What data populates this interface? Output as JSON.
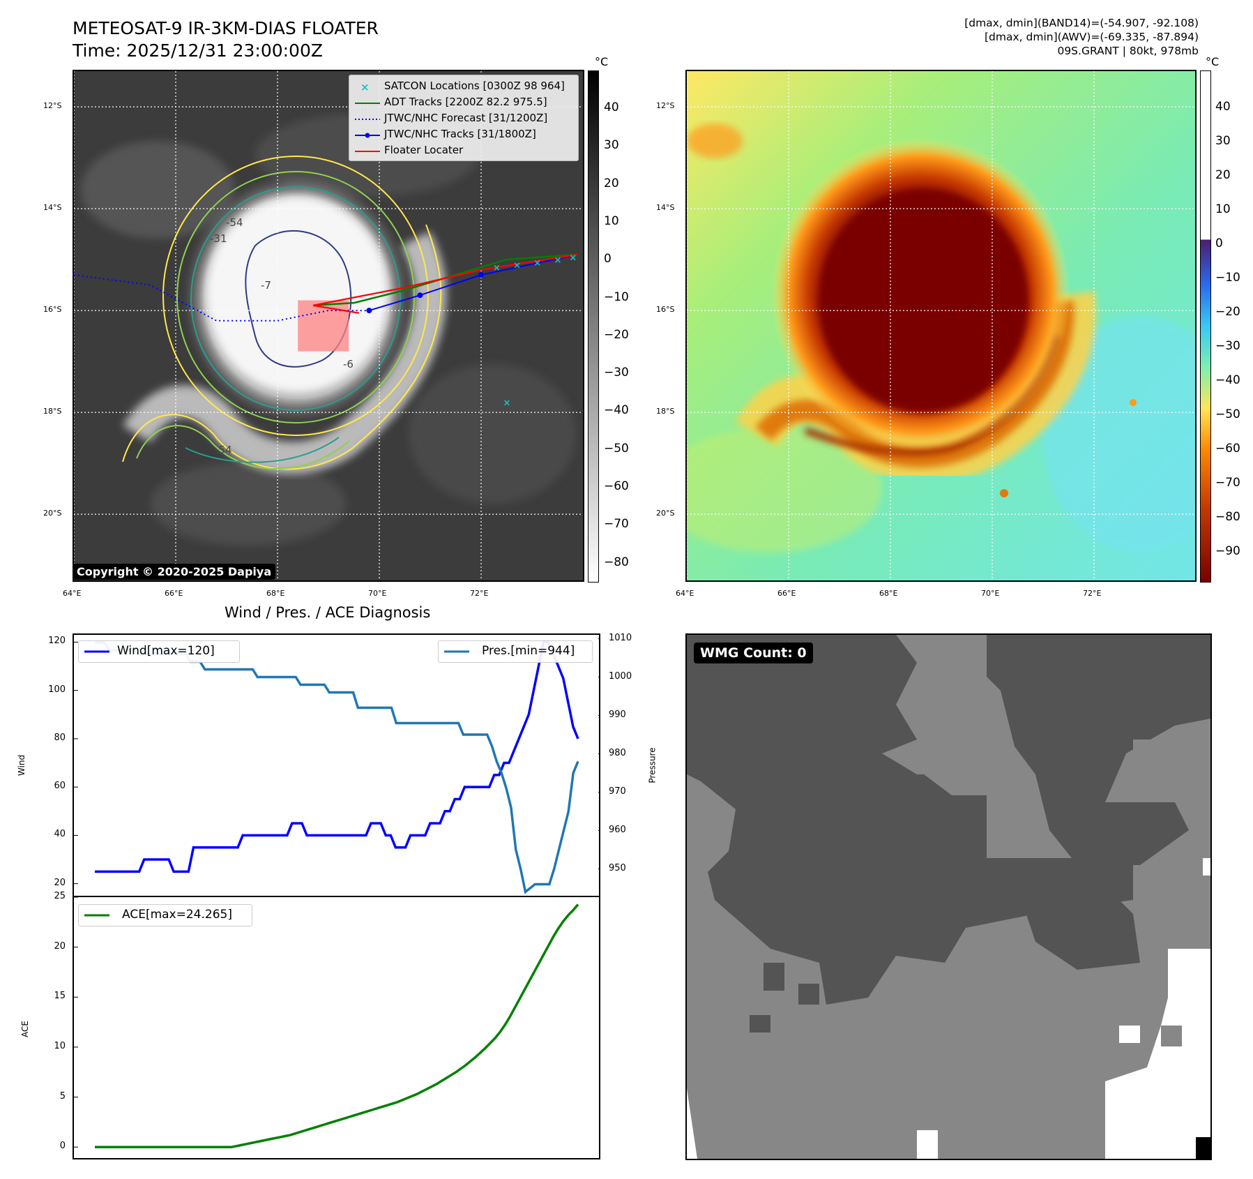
{
  "header": {
    "title_line1": "METEOSAT-9 IR-3KM-DIAS FLOATER",
    "title_line2": "Time: 2025/12/31 23:00:00Z",
    "stats_line1": "[dmax, dmin](BAND14)=(-54.907, -92.108)",
    "stats_line2": "[dmax, dmin](AWV)=(-69.335, -87.894)",
    "stats_line3": "09S.GRANT | 80kt, 978mb"
  },
  "map_panels": {
    "lon_ticks": [
      "64°E",
      "66°E",
      "68°E",
      "70°E",
      "72°E"
    ],
    "lat_ticks": [
      "12°S",
      "14°S",
      "16°S",
      "18°S",
      "20°S"
    ],
    "lon_range": [
      64.0,
      74.0
    ],
    "lat_range": [
      -21.3,
      -11.3
    ]
  },
  "ir_panel": {
    "colorbar_unit": "°C",
    "colorbar_ticks": [
      "40",
      "30",
      "20",
      "10",
      "0",
      "−10",
      "−20",
      "−30",
      "−40",
      "−50",
      "−60",
      "−70",
      "−80"
    ],
    "colorbar_colors": [
      "#000000",
      "#ffffff"
    ],
    "contour_labels": [
      "-54",
      "-31",
      "-7",
      "-6",
      "-54"
    ],
    "contour_colors": [
      "#ffe84a",
      "#8fd14f",
      "#2a9d8f",
      "#2e3a87"
    ],
    "copyright": "Copyright © 2020-2025 Dapiya",
    "legend": [
      {
        "label": "SATCON Locations [0300Z 98 964]",
        "color": "#19c3c3",
        "marker": "x"
      },
      {
        "label": "ADT Tracks [2200Z 82.2 975.5]",
        "color": "#008000",
        "marker": "line"
      },
      {
        "label": "JTWC/NHC Forecast [31/1200Z]",
        "color": "#0000ff",
        "marker": "dotted"
      },
      {
        "label": "JTWC/NHC Tracks [31/1800Z]",
        "color": "#0000ff",
        "marker": "line-dot"
      },
      {
        "label": "Floater Locater",
        "color": "#ff0000",
        "marker": "line"
      }
    ],
    "jtwc_track": [
      [
        70.8,
        -15.7
      ],
      [
        72.0,
        -15.3
      ],
      [
        73.9,
        -14.9
      ]
    ],
    "jtwc_forecast": [
      [
        64.0,
        -15.3
      ],
      [
        65.5,
        -15.5
      ],
      [
        66.8,
        -16.2
      ],
      [
        68.0,
        -16.2
      ],
      [
        69.0,
        -16.0
      ],
      [
        69.8,
        -16.0
      ]
    ],
    "adt_track": [
      [
        68.7,
        -15.9
      ],
      [
        69.5,
        -15.85
      ],
      [
        70.5,
        -15.6
      ],
      [
        71.5,
        -15.3
      ],
      [
        72.5,
        -15.0
      ],
      [
        73.9,
        -14.9
      ]
    ],
    "satcon_points": [
      [
        72.3,
        -15.15
      ],
      [
        72.7,
        -15.1
      ],
      [
        73.1,
        -15.05
      ],
      [
        73.5,
        -15.0
      ],
      [
        73.8,
        -14.95
      ],
      [
        72.5,
        -17.8
      ]
    ],
    "floater_box": [
      68.4,
      -16.8,
      69.4,
      -15.8
    ]
  },
  "enhanced_panel": {
    "colorbar_unit": "°C",
    "colorbar_ticks": [
      "40",
      "30",
      "20",
      "10",
      "0",
      "−10",
      "−20",
      "−30",
      "−40",
      "−50",
      "−60",
      "−70",
      "−80",
      "−90"
    ],
    "colorbar_colors": [
      "#ffffff",
      "#4b1d6d",
      "#2a6cf0",
      "#38c9f5",
      "#7df0b0",
      "#ffe55a",
      "#ff8a00",
      "#c83c00",
      "#7a0000"
    ]
  },
  "diagnosis": {
    "title": "Wind / Pres. / ACE Diagnosis",
    "wind_legend": "Wind[max=120]",
    "pres_legend": "Pres.[min=944]",
    "ace_legend": "ACE[max=24.265]",
    "wind_axis_label": "Wind",
    "pres_axis_label": "Pressure",
    "ace_axis_label": "ACE"
  },
  "wmg": {
    "label": "WMG Count: 0"
  },
  "chart_data": [
    {
      "type": "line",
      "title": "Wind / Pres. / ACE Diagnosis",
      "ylabel": "Wind",
      "ylim": [
        15,
        123
      ],
      "yticks": [
        20,
        40,
        60,
        80,
        100,
        120
      ],
      "series": [
        {
          "name": "Wind[max=120]",
          "color": "#0000ff",
          "values": [
            25,
            25,
            25,
            25,
            25,
            25,
            25,
            25,
            25,
            25,
            30,
            30,
            30,
            30,
            30,
            30,
            25,
            25,
            25,
            25,
            35,
            35,
            35,
            35,
            35,
            35,
            35,
            35,
            35,
            35,
            40,
            40,
            40,
            40,
            40,
            40,
            40,
            40,
            40,
            40,
            45,
            45,
            45,
            40,
            40,
            40,
            40,
            40,
            40,
            40,
            40,
            40,
            40,
            40,
            40,
            40,
            45,
            45,
            45,
            40,
            40,
            35,
            35,
            35,
            40,
            40,
            40,
            40,
            45,
            45,
            45,
            50,
            50,
            55,
            55,
            60,
            60,
            60,
            60,
            60,
            60,
            65,
            65,
            70,
            70,
            75,
            80,
            85,
            90,
            100,
            110,
            120,
            120,
            115,
            110,
            105,
            95,
            85,
            80
          ]
        }
      ]
    },
    {
      "type": "line",
      "ylabel": "Pressure",
      "ylim": [
        943,
        1011
      ],
      "yticks": [
        950,
        960,
        970,
        980,
        990,
        1000,
        1010
      ],
      "series": [
        {
          "name": "Pres.[min=944]",
          "color": "#1f77b4",
          "values": [
            1009,
            1009,
            1009,
            1007,
            1007,
            1007,
            1007,
            1007,
            1007,
            1006,
            1006,
            1006,
            1006,
            1006,
            1006,
            1006,
            1006,
            1006,
            1006,
            1006,
            1004,
            1004,
            1004,
            1002,
            1002,
            1002,
            1002,
            1002,
            1002,
            1002,
            1002,
            1002,
            1002,
            1002,
            1000,
            1000,
            1000,
            1000,
            1000,
            1000,
            1000,
            1000,
            1000,
            998,
            998,
            998,
            998,
            998,
            998,
            996,
            996,
            996,
            996,
            996,
            996,
            992,
            992,
            992,
            992,
            992,
            992,
            992,
            992,
            988,
            988,
            988,
            988,
            988,
            988,
            988,
            988,
            988,
            988,
            988,
            988,
            988,
            988,
            985,
            985,
            985,
            985,
            985,
            985,
            982,
            978,
            975,
            971,
            966,
            955,
            950,
            944,
            945,
            946,
            946,
            946,
            946,
            950,
            955,
            960,
            965,
            975,
            978
          ]
        }
      ]
    },
    {
      "type": "line",
      "ylabel": "ACE",
      "ylim": [
        -1.1,
        25
      ],
      "yticks": [
        0,
        5,
        10,
        15,
        20,
        25
      ],
      "series": [
        {
          "name": "ACE[max=24.265]",
          "color": "#008000",
          "values": [
            0,
            0,
            0,
            0,
            0,
            0,
            0,
            0,
            0,
            0,
            0,
            0,
            0,
            0,
            0,
            0,
            0,
            0,
            0,
            0,
            0,
            0,
            0,
            0,
            0,
            0,
            0,
            0,
            0,
            0.1,
            0.2,
            0.3,
            0.4,
            0.5,
            0.6,
            0.7,
            0.8,
            0.9,
            1.0,
            1.1,
            1.2,
            1.35,
            1.5,
            1.65,
            1.8,
            1.95,
            2.1,
            2.25,
            2.4,
            2.55,
            2.7,
            2.85,
            3.0,
            3.15,
            3.3,
            3.45,
            3.6,
            3.75,
            3.9,
            4.05,
            4.2,
            4.35,
            4.5,
            4.7,
            4.9,
            5.1,
            5.3,
            5.55,
            5.8,
            6.05,
            6.3,
            6.6,
            6.9,
            7.2,
            7.5,
            7.85,
            8.2,
            8.6,
            9.0,
            9.45,
            9.9,
            10.4,
            10.9,
            11.5,
            12.2,
            13.0,
            13.9,
            14.8,
            15.7,
            16.6,
            17.5,
            18.4,
            19.3,
            20.2,
            21.1,
            21.9,
            22.6,
            23.2,
            23.7,
            24.265
          ]
        }
      ]
    }
  ]
}
